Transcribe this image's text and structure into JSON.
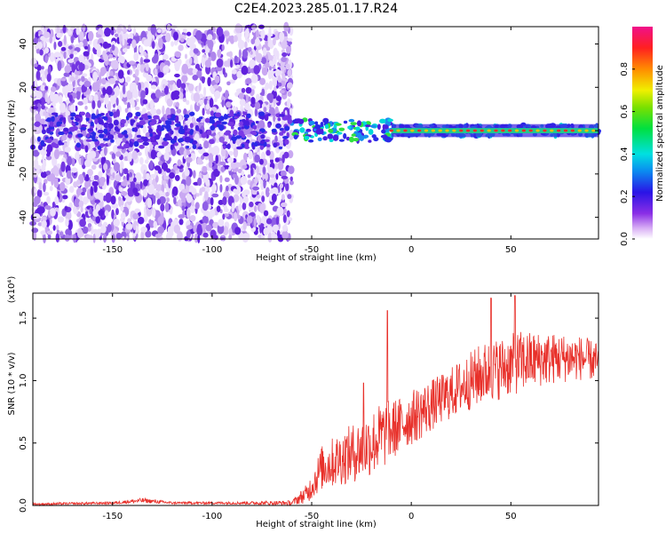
{
  "title": "C2E4.2023.285.01.17.R24",
  "colors": {
    "snr_line": "#e8302a",
    "spectro_main": "#5a1ee0",
    "axis": "#000000"
  },
  "chart_data": [
    {
      "type": "heatmap",
      "xlabel": "Height of straight line (km)",
      "ylabel": "Frequency (Hz)",
      "xlim": [
        -190,
        94
      ],
      "ylim": [
        -50,
        48
      ],
      "x_ticks": [
        -150,
        -100,
        -50,
        0,
        50
      ],
      "y_ticks": [
        -40,
        -20,
        0,
        20,
        40
      ],
      "colorbar": {
        "label": "Normalized spectral amplitude",
        "range": [
          0.0,
          1.0
        ],
        "ticks": [
          "0.0",
          "0.2",
          "0.4",
          "0.6",
          "0.8"
        ],
        "tick_values": [
          0.0,
          0.2,
          0.4,
          0.6,
          0.8
        ],
        "colormap": "rainbow (white-violet-blue-cyan-green-yellow-red-magenta)"
      },
      "features": {
        "noise_region_x": [
          -190,
          -60
        ],
        "signal_line_frequency": 0,
        "clean_signal_start_x": -10
      }
    },
    {
      "type": "line",
      "xlabel": "Height of straight line (km)",
      "ylabel": "SNR (10 * v/v)",
      "y_scale_label": "(x10⁴)",
      "xlim": [
        -190,
        94
      ],
      "ylim": [
        0.0,
        1.7
      ],
      "x_ticks": [
        -150,
        -100,
        -50,
        0,
        50
      ],
      "y_ticks": [
        "0.0",
        "0.5",
        "1.0",
        "1.5"
      ],
      "y_tick_values": [
        0.0,
        0.5,
        1.0,
        1.5
      ],
      "envelope": {
        "x": [
          -190,
          -150,
          -135,
          -120,
          -90,
          -60,
          -52,
          -45,
          -35,
          -25,
          -15,
          -5,
          5,
          15,
          25,
          35,
          45,
          55,
          65,
          75,
          85,
          94
        ],
        "mean": [
          0.01,
          0.02,
          0.04,
          0.02,
          0.02,
          0.02,
          0.1,
          0.3,
          0.38,
          0.45,
          0.55,
          0.65,
          0.75,
          0.85,
          0.95,
          1.05,
          1.1,
          1.15,
          1.17,
          1.18,
          1.18,
          1.15
        ],
        "spread": [
          0.01,
          0.01,
          0.02,
          0.01,
          0.01,
          0.02,
          0.08,
          0.18,
          0.22,
          0.25,
          0.28,
          0.22,
          0.22,
          0.2,
          0.22,
          0.25,
          0.25,
          0.25,
          0.22,
          0.2,
          0.18,
          0.15
        ]
      },
      "peaks": [
        {
          "x": -12,
          "y": 1.56
        },
        {
          "x": -24,
          "y": 0.98
        },
        {
          "x": 40,
          "y": 1.66
        },
        {
          "x": 52,
          "y": 1.68
        }
      ]
    }
  ]
}
